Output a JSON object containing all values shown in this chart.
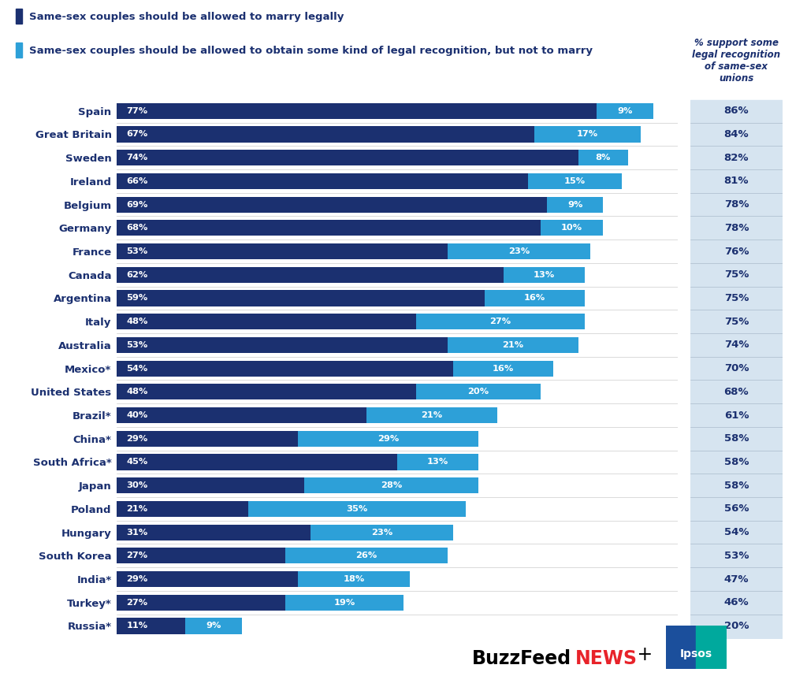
{
  "countries": [
    "Spain",
    "Great Britain",
    "Sweden",
    "Ireland",
    "Belgium",
    "Germany",
    "France",
    "Canada",
    "Argentina",
    "Italy",
    "Australia",
    "Mexico*",
    "United States",
    "Brazil*",
    "China*",
    "South Africa*",
    "Japan",
    "Poland",
    "Hungary",
    "South Korea",
    "India*",
    "Turkey*",
    "Russia*"
  ],
  "marry": [
    77,
    67,
    74,
    66,
    69,
    68,
    53,
    62,
    59,
    48,
    53,
    54,
    48,
    40,
    29,
    45,
    30,
    21,
    31,
    27,
    29,
    27,
    11
  ],
  "legal_not_marry": [
    9,
    17,
    8,
    15,
    9,
    10,
    23,
    13,
    16,
    27,
    21,
    16,
    20,
    21,
    29,
    13,
    28,
    35,
    23,
    26,
    18,
    19,
    9
  ],
  "total": [
    86,
    84,
    82,
    81,
    78,
    78,
    76,
    75,
    75,
    75,
    74,
    70,
    68,
    61,
    58,
    58,
    58,
    56,
    54,
    53,
    47,
    46,
    20
  ],
  "dark_blue": "#1b3070",
  "light_blue": "#2da0d8",
  "header_bg": "#d6e4f0",
  "background": "#ffffff",
  "text_white": "#ffffff",
  "total_color": "#1b3070",
  "legend1": "Same-sex couples should be allowed to marry legally",
  "legend2": "Same-sex couples should be allowed to obtain some kind of legal recognition, but not to marry",
  "header_text": "% support some\nlegal recognition\nof same-sex\nunions",
  "bar_height": 0.68,
  "xmax": 90,
  "buzzfeed_black": "#000000",
  "buzzfeed_red": "#e8232a"
}
